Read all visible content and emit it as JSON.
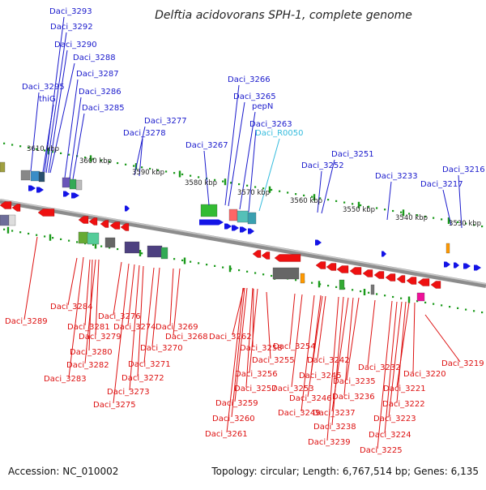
{
  "title": "Delftia acidovorans SPH-1, complete genome",
  "footer": {
    "accession": "Accession: NC_010002",
    "summary": "Topology: circular; Length: 6,767,514 bp; Genes: 6,135"
  },
  "colors": {
    "background": "#ffffff",
    "label_top": "#1a1acc",
    "label_rna": "#33bbdd",
    "label_bottom": "#dd1111",
    "backbone": "#8c8c8c",
    "tick": "#1a9a1a",
    "gene_forward": "#1414e6",
    "gene_reverse": "#ee1111"
  },
  "positions_kbp": [
    "3610 kbp",
    "3600 kbp",
    "3590 kbp",
    "3580 kbp",
    "3570 kbp",
    "3560 kbp",
    "3550 kbp",
    "3540 kbp",
    "3530 kbp"
  ],
  "top_labels": [
    "Daci_3293",
    "Daci_3292",
    "Daci_3290",
    "Daci_3288",
    "Daci_3287",
    "Daci_3295",
    "thiG",
    "Daci_3286",
    "Daci_3285",
    "Daci_3277",
    "Daci_3278",
    "Daci_3266",
    "Daci_3265",
    "pepN",
    "Daci_3263",
    "Daci_3267",
    "Daci_3251",
    "Daci_3252",
    "Daci_3233",
    "Daci_3217",
    "Daci_3216"
  ],
  "rna_labels": [
    "Daci_R0050"
  ],
  "bottom_labels": [
    "Daci_3289",
    "Daci_3284",
    "Daci_3276",
    "Daci_3281",
    "Daci_3274",
    "Daci_3269",
    "Daci_3279",
    "Daci_3268",
    "Daci_3280",
    "Daci_3270",
    "Daci_3282",
    "Daci_3271",
    "Daci_3283",
    "Daci_3272",
    "Daci_3273",
    "Daci_3275",
    "Daci_3262",
    "Daci_3258",
    "Daci_3255",
    "Daci_3254",
    "Daci_3256",
    "Daci_3242",
    "Daci_3232",
    "Daci_3245",
    "Daci_3235",
    "Daci_3220",
    "Daci_3219",
    "Daci_3253",
    "Daci_3257",
    "Daci_3246",
    "Daci_3221",
    "Daci_3236",
    "Daci_3259",
    "Daci_3249",
    "Daci_3237",
    "Daci_3222",
    "Daci_3260",
    "Daci_3238",
    "Daci_3223",
    "Daci_3261",
    "Daci_3239",
    "Daci_3224",
    "Daci_3225"
  ]
}
